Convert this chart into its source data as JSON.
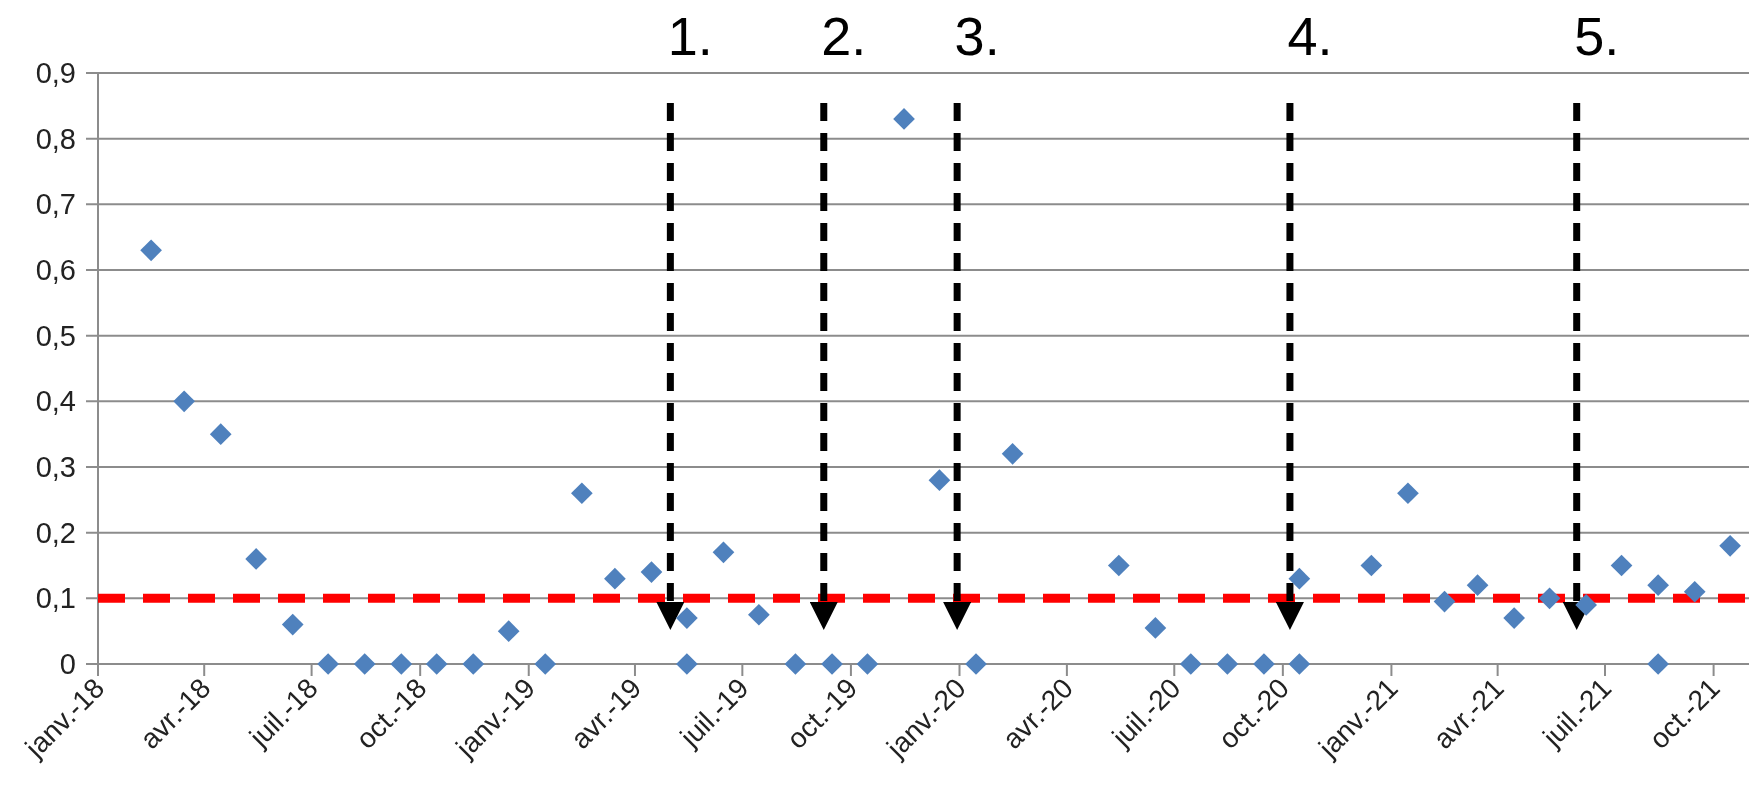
{
  "chart_data": {
    "type": "scatter",
    "marker": "diamond",
    "grid": "y",
    "x": [
      "2018-02-15",
      "2018-03-15",
      "2018-04-15",
      "2018-05-15",
      "2018-06-15",
      "2018-07-15",
      "2018-08-15",
      "2018-09-15",
      "2018-10-15",
      "2018-11-15",
      "2018-12-15",
      "2019-01-15",
      "2019-02-15",
      "2019-03-15",
      "2019-04-15",
      "2019-05-15",
      "2019-05-15",
      "2019-06-15",
      "2019-07-15",
      "2019-08-15",
      "2019-09-15",
      "2019-10-15",
      "2019-11-15",
      "2019-12-15",
      "2020-01-15",
      "2020-02-15",
      "2020-05-15",
      "2020-06-15",
      "2020-07-15",
      "2020-08-15",
      "2020-09-15",
      "2020-10-15",
      "2020-10-15",
      "2020-12-15",
      "2021-01-15",
      "2021-02-15",
      "2021-03-15",
      "2021-04-15",
      "2021-05-15",
      "2021-06-15",
      "2021-07-15",
      "2021-08-15",
      "2021-08-15",
      "2021-09-15",
      "2021-10-15"
    ],
    "series": [
      {
        "color": "#4f81bd",
        "values": [
          0.63,
          0.4,
          0.35,
          0.16,
          0.06,
          0,
          0,
          0,
          0,
          0,
          0.05,
          0,
          0.26,
          0.13,
          0.14,
          0.07,
          0,
          0.17,
          0.075,
          0,
          0,
          0,
          0.83,
          0.28,
          0,
          0.32,
          0.15,
          0.055,
          0,
          0,
          0,
          0.13,
          0,
          0.15,
          0.26,
          0.095,
          0.12,
          0.07,
          0.1,
          0.09,
          0.15,
          0.12,
          0,
          0.11,
          0.18
        ]
      }
    ],
    "xlim": [
      "2018-01-01",
      "2021-10-31"
    ],
    "xticks": [
      {
        "value": "2018-01-01",
        "label": "janv.-18"
      },
      {
        "value": "2018-04-01",
        "label": "avr.-18"
      },
      {
        "value": "2018-07-01",
        "label": "juil.-18"
      },
      {
        "value": "2018-10-01",
        "label": "oct.-18"
      },
      {
        "value": "2019-01-01",
        "label": "janv.-19"
      },
      {
        "value": "2019-04-01",
        "label": "avr.-19"
      },
      {
        "value": "2019-07-01",
        "label": "juil.-19"
      },
      {
        "value": "2019-10-01",
        "label": "oct.-19"
      },
      {
        "value": "2020-01-01",
        "label": "janv.-20"
      },
      {
        "value": "2020-04-01",
        "label": "avr.-20"
      },
      {
        "value": "2020-07-01",
        "label": "juil.-20"
      },
      {
        "value": "2020-10-01",
        "label": "oct.-20"
      },
      {
        "value": "2021-01-01",
        "label": "janv.-21"
      },
      {
        "value": "2021-04-01",
        "label": "avr.-21"
      },
      {
        "value": "2021-07-01",
        "label": "juil.-21"
      },
      {
        "value": "2021-10-01",
        "label": "oct.-21"
      }
    ],
    "ylim": [
      0,
      0.9
    ],
    "yticks": [
      0,
      {
        "value": 0.1,
        "label": "0,1"
      },
      {
        "value": 0.2,
        "label": "0,2"
      },
      {
        "value": 0.3,
        "label": "0,3"
      },
      {
        "value": 0.4,
        "label": "0,4"
      },
      {
        "value": 0.5,
        "label": "0,5"
      },
      {
        "value": 0.6,
        "label": "0,6"
      },
      {
        "value": 0.7,
        "label": "0,7"
      },
      {
        "value": 0.8,
        "label": "0,8"
      },
      {
        "value": 0.9,
        "label": "0,9"
      }
    ],
    "ref_lines": [
      {
        "axis": "y",
        "value": 0.1,
        "color": "#ff0000",
        "line_style": "dashed"
      },
      {
        "axis": "x",
        "value": "2019-05-01",
        "label": "1.",
        "color": "#000000",
        "line_style": "dashed"
      },
      {
        "axis": "x",
        "value": "2019-09-08",
        "label": "2.",
        "color": "#000000",
        "line_style": "dashed"
      },
      {
        "axis": "x",
        "value": "2019-12-30",
        "label": "3.",
        "color": "#000000",
        "line_style": "dashed"
      },
      {
        "axis": "x",
        "value": "2020-10-07",
        "label": "4.",
        "color": "#000000",
        "line_style": "dashed"
      },
      {
        "axis": "x",
        "value": "2021-06-07",
        "label": "5.",
        "color": "#000000",
        "line_style": "dashed"
      }
    ]
  }
}
